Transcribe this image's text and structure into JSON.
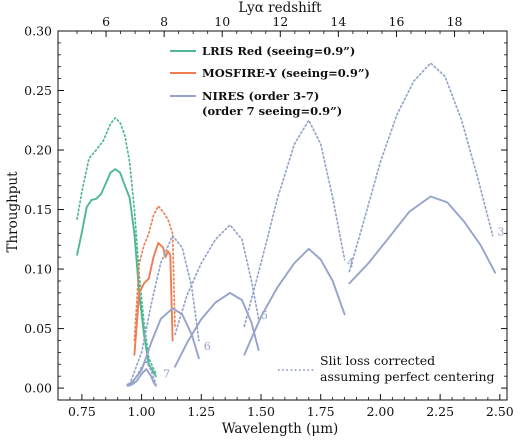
{
  "chart_data": {
    "type": "line",
    "xlabel": "Wavelength (μm)",
    "ylabel": "Throughput",
    "top_xlabel": "Lyα redshift",
    "xlim": [
      0.65,
      2.53
    ],
    "ylim": [
      -0.01,
      0.3
    ],
    "xticks": [
      "0.75",
      "1.00",
      "1.25",
      "1.50",
      "1.75",
      "2.00",
      "2.25",
      "2.50"
    ],
    "xtick_values": [
      0.75,
      1.0,
      1.25,
      1.5,
      1.75,
      2.0,
      2.25,
      2.5
    ],
    "yticks": [
      "0.00",
      "0.05",
      "0.10",
      "0.15",
      "0.20",
      "0.25",
      "0.30"
    ],
    "ytick_values": [
      0.0,
      0.05,
      0.1,
      0.15,
      0.2,
      0.25,
      0.3
    ],
    "top_xticks": [
      "6",
      "8",
      "10",
      "12",
      "14",
      "16",
      "18"
    ],
    "top_xtick_values": [
      6,
      8,
      10,
      12,
      14,
      16,
      18
    ],
    "legend": {
      "entries": [
        "LRIS Red (seeing=0.9”)",
        "MOSFIRE-Y (seeing=0.9”)",
        "NIRES (order 3-7)",
        "(order 7 seeing=0.9”)"
      ],
      "note_lines": [
        "Slit loss corrected",
        "assuming perfect centering"
      ]
    },
    "colors": {
      "lris": "#4db892",
      "mosfire": "#f07d52",
      "nires": "#96a4cb"
    },
    "order_labels": [
      {
        "text": "3",
        "x": 2.49,
        "y": 0.128
      },
      {
        "text": "4",
        "x": 1.86,
        "y": 0.102
      },
      {
        "text": "5",
        "x": 1.5,
        "y": 0.058
      },
      {
        "text": "6",
        "x": 1.26,
        "y": 0.032
      },
      {
        "text": "7",
        "x": 1.09,
        "y": 0.009
      }
    ],
    "series": [
      {
        "name": "LRIS Red (seeing=0.9”)",
        "instrument": "lris",
        "style": "solid",
        "points": [
          [
            0.73,
            0.112
          ],
          [
            0.75,
            0.131
          ],
          [
            0.77,
            0.152
          ],
          [
            0.79,
            0.158
          ],
          [
            0.81,
            0.159
          ],
          [
            0.83,
            0.163
          ],
          [
            0.85,
            0.172
          ],
          [
            0.87,
            0.181
          ],
          [
            0.89,
            0.184
          ],
          [
            0.91,
            0.181
          ],
          [
            0.93,
            0.17
          ],
          [
            0.95,
            0.16
          ],
          [
            0.97,
            0.13
          ],
          [
            0.99,
            0.08
          ],
          [
            1.01,
            0.045
          ],
          [
            1.03,
            0.02
          ],
          [
            1.06,
            0.01
          ]
        ]
      },
      {
        "name": "LRIS Red slit loss corrected",
        "instrument": "lris",
        "style": "dotted",
        "points": [
          [
            0.73,
            0.142
          ],
          [
            0.75,
            0.165
          ],
          [
            0.78,
            0.193
          ],
          [
            0.81,
            0.2
          ],
          [
            0.84,
            0.208
          ],
          [
            0.87,
            0.222
          ],
          [
            0.89,
            0.227
          ],
          [
            0.91,
            0.223
          ],
          [
            0.93,
            0.212
          ],
          [
            0.95,
            0.19
          ],
          [
            0.97,
            0.15
          ],
          [
            0.99,
            0.095
          ],
          [
            1.01,
            0.055
          ],
          [
            1.03,
            0.025
          ],
          [
            1.06,
            0.012
          ]
        ]
      },
      {
        "name": "MOSFIRE-Y (seeing=0.9”)",
        "instrument": "mosfire",
        "style": "solid",
        "points": [
          [
            0.97,
            0.028
          ],
          [
            0.99,
            0.08
          ],
          [
            1.01,
            0.088
          ],
          [
            1.03,
            0.092
          ],
          [
            1.05,
            0.11
          ],
          [
            1.07,
            0.122
          ],
          [
            1.09,
            0.118
          ],
          [
            1.1,
            0.11
          ],
          [
            1.11,
            0.115
          ],
          [
            1.12,
            0.112
          ],
          [
            1.13,
            0.04
          ]
        ]
      },
      {
        "name": "MOSFIRE-Y slit loss corrected",
        "instrument": "mosfire",
        "style": "dotted",
        "points": [
          [
            0.97,
            0.04
          ],
          [
            0.99,
            0.105
          ],
          [
            1.01,
            0.12
          ],
          [
            1.03,
            0.13
          ],
          [
            1.05,
            0.145
          ],
          [
            1.07,
            0.153
          ],
          [
            1.09,
            0.148
          ],
          [
            1.11,
            0.142
          ],
          [
            1.13,
            0.13
          ],
          [
            1.14,
            0.05
          ]
        ]
      },
      {
        "name": "NIRES order 7",
        "instrument": "nires",
        "style": "solid",
        "points": [
          [
            0.94,
            0.002
          ],
          [
            0.96,
            0.003
          ],
          [
            0.98,
            0.006
          ],
          [
            1.0,
            0.012
          ],
          [
            1.02,
            0.016
          ],
          [
            1.04,
            0.01
          ],
          [
            1.05,
            0.005
          ],
          [
            1.06,
            0.002
          ]
        ]
      },
      {
        "name": "NIRES order 7 slit loss corrected",
        "instrument": "nires",
        "style": "dotted",
        "points": [
          [
            0.94,
            0.003
          ],
          [
            0.96,
            0.005
          ],
          [
            0.98,
            0.01
          ],
          [
            1.0,
            0.018
          ],
          [
            1.02,
            0.022
          ],
          [
            1.04,
            0.015
          ],
          [
            1.06,
            0.003
          ]
        ]
      },
      {
        "name": "NIRES order 6",
        "instrument": "nires",
        "style": "solid",
        "points": [
          [
            0.95,
            0.002
          ],
          [
            1.0,
            0.015
          ],
          [
            1.04,
            0.038
          ],
          [
            1.08,
            0.058
          ],
          [
            1.13,
            0.067
          ],
          [
            1.17,
            0.062
          ],
          [
            1.21,
            0.045
          ],
          [
            1.24,
            0.025
          ]
        ]
      },
      {
        "name": "NIRES order 6 slit loss corrected",
        "instrument": "nires",
        "style": "dotted",
        "points": [
          [
            0.95,
            0.003
          ],
          [
            1.0,
            0.03
          ],
          [
            1.04,
            0.07
          ],
          [
            1.08,
            0.105
          ],
          [
            1.13,
            0.128
          ],
          [
            1.17,
            0.118
          ],
          [
            1.21,
            0.085
          ],
          [
            1.24,
            0.04
          ]
        ]
      },
      {
        "name": "NIRES order 5",
        "instrument": "nires",
        "style": "solid",
        "points": [
          [
            1.14,
            0.018
          ],
          [
            1.19,
            0.038
          ],
          [
            1.25,
            0.058
          ],
          [
            1.31,
            0.072
          ],
          [
            1.37,
            0.08
          ],
          [
            1.42,
            0.074
          ],
          [
            1.46,
            0.055
          ],
          [
            1.49,
            0.032
          ]
        ]
      },
      {
        "name": "NIRES order 5 slit loss corrected",
        "instrument": "nires",
        "style": "dotted",
        "points": [
          [
            1.14,
            0.045
          ],
          [
            1.19,
            0.078
          ],
          [
            1.25,
            0.105
          ],
          [
            1.31,
            0.125
          ],
          [
            1.37,
            0.137
          ],
          [
            1.42,
            0.125
          ],
          [
            1.46,
            0.09
          ],
          [
            1.49,
            0.058
          ]
        ]
      },
      {
        "name": "NIRES order 4",
        "instrument": "nires",
        "style": "solid",
        "points": [
          [
            1.43,
            0.028
          ],
          [
            1.5,
            0.06
          ],
          [
            1.57,
            0.085
          ],
          [
            1.64,
            0.105
          ],
          [
            1.7,
            0.117
          ],
          [
            1.75,
            0.108
          ],
          [
            1.8,
            0.09
          ],
          [
            1.85,
            0.062
          ]
        ]
      },
      {
        "name": "NIRES order 4 slit loss corrected",
        "instrument": "nires",
        "style": "dotted",
        "points": [
          [
            1.43,
            0.052
          ],
          [
            1.5,
            0.105
          ],
          [
            1.57,
            0.16
          ],
          [
            1.64,
            0.205
          ],
          [
            1.7,
            0.225
          ],
          [
            1.75,
            0.205
          ],
          [
            1.8,
            0.16
          ],
          [
            1.85,
            0.108
          ]
        ]
      },
      {
        "name": "NIRES order 3",
        "instrument": "nires",
        "style": "solid",
        "points": [
          [
            1.87,
            0.088
          ],
          [
            1.95,
            0.105
          ],
          [
            2.03,
            0.125
          ],
          [
            2.12,
            0.148
          ],
          [
            2.21,
            0.161
          ],
          [
            2.28,
            0.156
          ],
          [
            2.35,
            0.14
          ],
          [
            2.42,
            0.12
          ],
          [
            2.48,
            0.097
          ]
        ]
      },
      {
        "name": "NIRES order 3 slit loss corrected",
        "instrument": "nires",
        "style": "dotted",
        "points": [
          [
            1.87,
            0.098
          ],
          [
            1.93,
            0.14
          ],
          [
            2.0,
            0.19
          ],
          [
            2.07,
            0.23
          ],
          [
            2.14,
            0.258
          ],
          [
            2.21,
            0.273
          ],
          [
            2.27,
            0.262
          ],
          [
            2.34,
            0.225
          ],
          [
            2.41,
            0.175
          ],
          [
            2.47,
            0.128
          ]
        ]
      }
    ]
  }
}
